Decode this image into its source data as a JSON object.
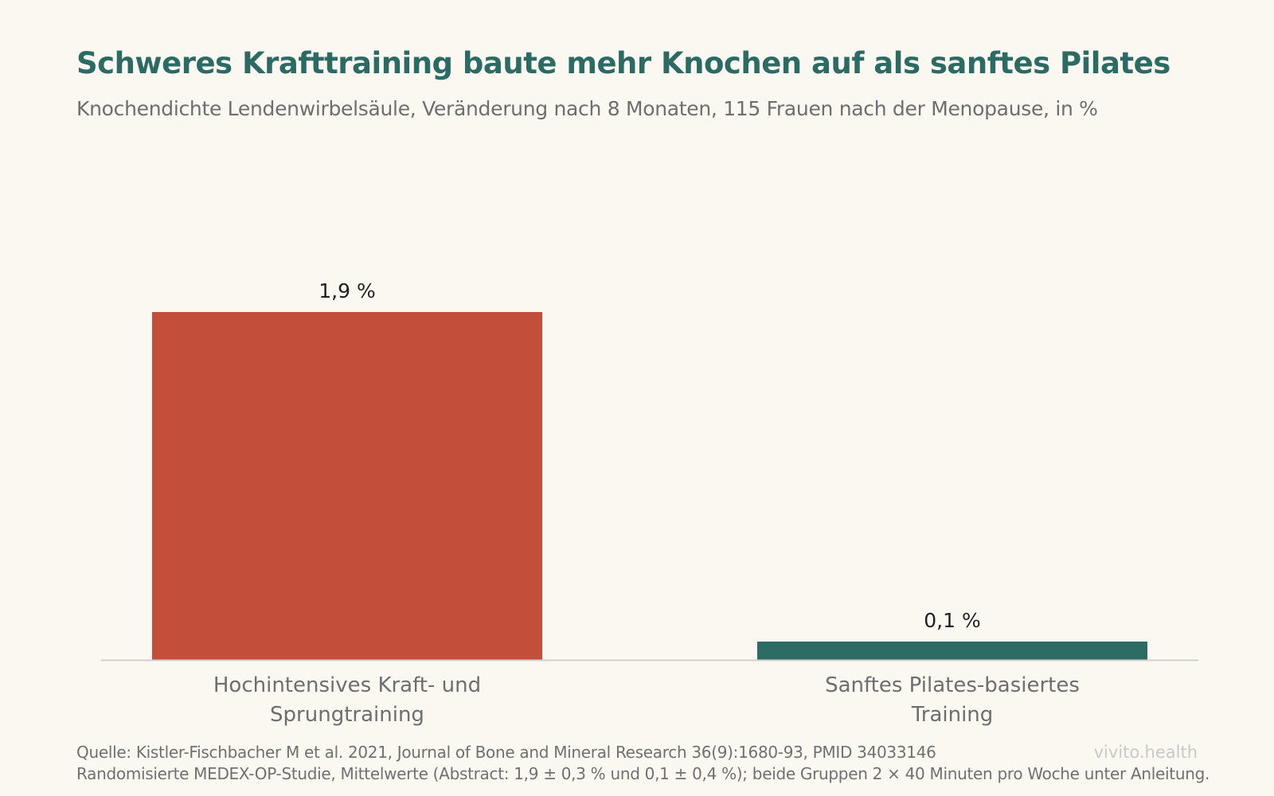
{
  "header": {
    "title": "Schweres Krafttraining baute mehr Knochen auf als sanftes Pilates",
    "subtitle": "Knochendichte Lendenwirbelsäule, Veränderung nach 8 Monaten, 115 Frauen nach der Menopause, in %"
  },
  "footer": {
    "source": "Quelle: Kistler-Fischbacher M et al. 2021, Journal of Bone and Mineral Research 36(9):1680-93, PMID 34033146",
    "note": "Randomisierte MEDEX-OP-Studie, Mittelwerte (Abstract: 1,9 ± 0,3 % und 0,1 ± 0,4 %); beide Gruppen 2 × 40 Minuten pro Woche unter Anleitung.",
    "brand": "vivito.health"
  },
  "chart_data": {
    "type": "bar",
    "categories": [
      [
        "Hochintensives Kraft- und",
        "Sprungtraining"
      ],
      [
        "Sanftes Pilates-basiertes",
        "Training"
      ]
    ],
    "values": [
      1.9,
      0.1
    ],
    "value_labels": [
      "1,9 %",
      "0,1 %"
    ],
    "colors": [
      "#c34e3a",
      "#2c6b64"
    ],
    "ylim": [
      0,
      1.9
    ],
    "grid": false,
    "axis_color": "#cfcfcf",
    "label_color": "#6e6e6e",
    "value_label_color": "#1f1f1f"
  }
}
